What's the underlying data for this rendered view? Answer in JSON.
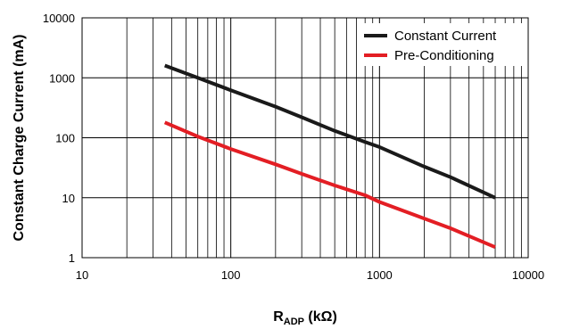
{
  "chart_data": {
    "type": "line",
    "xscale": "log",
    "yscale": "log",
    "xlim": [
      10,
      10000
    ],
    "ylim": [
      1,
      10000
    ],
    "x_ticks": [
      "10",
      "100",
      "1000",
      "10000"
    ],
    "y_ticks": [
      "1",
      "10",
      "100",
      "1000",
      "10000"
    ],
    "xlabel": {
      "main": "R",
      "sub": "ADP",
      "unit": " (kΩ)"
    },
    "ylabel": "Constant Charge Current (mA)",
    "grid": true,
    "legend_position": "top-right",
    "series": [
      {
        "name": "Constant Current",
        "color": "#1a1a1a",
        "x": [
          36,
          60,
          100,
          200,
          300,
          500,
          800,
          1000,
          2000,
          3000,
          6000
        ],
        "y": [
          1600,
          1000,
          620,
          330,
          220,
          130,
          85,
          70,
          33,
          22,
          10
        ]
      },
      {
        "name": "Pre-Conditioning",
        "color": "#e31e24",
        "x": [
          36,
          60,
          100,
          200,
          300,
          500,
          800,
          1000,
          2000,
          3000,
          6000
        ],
        "y": [
          180,
          105,
          65,
          36,
          25,
          16,
          11,
          8.5,
          4.5,
          3.1,
          1.5
        ]
      }
    ]
  }
}
